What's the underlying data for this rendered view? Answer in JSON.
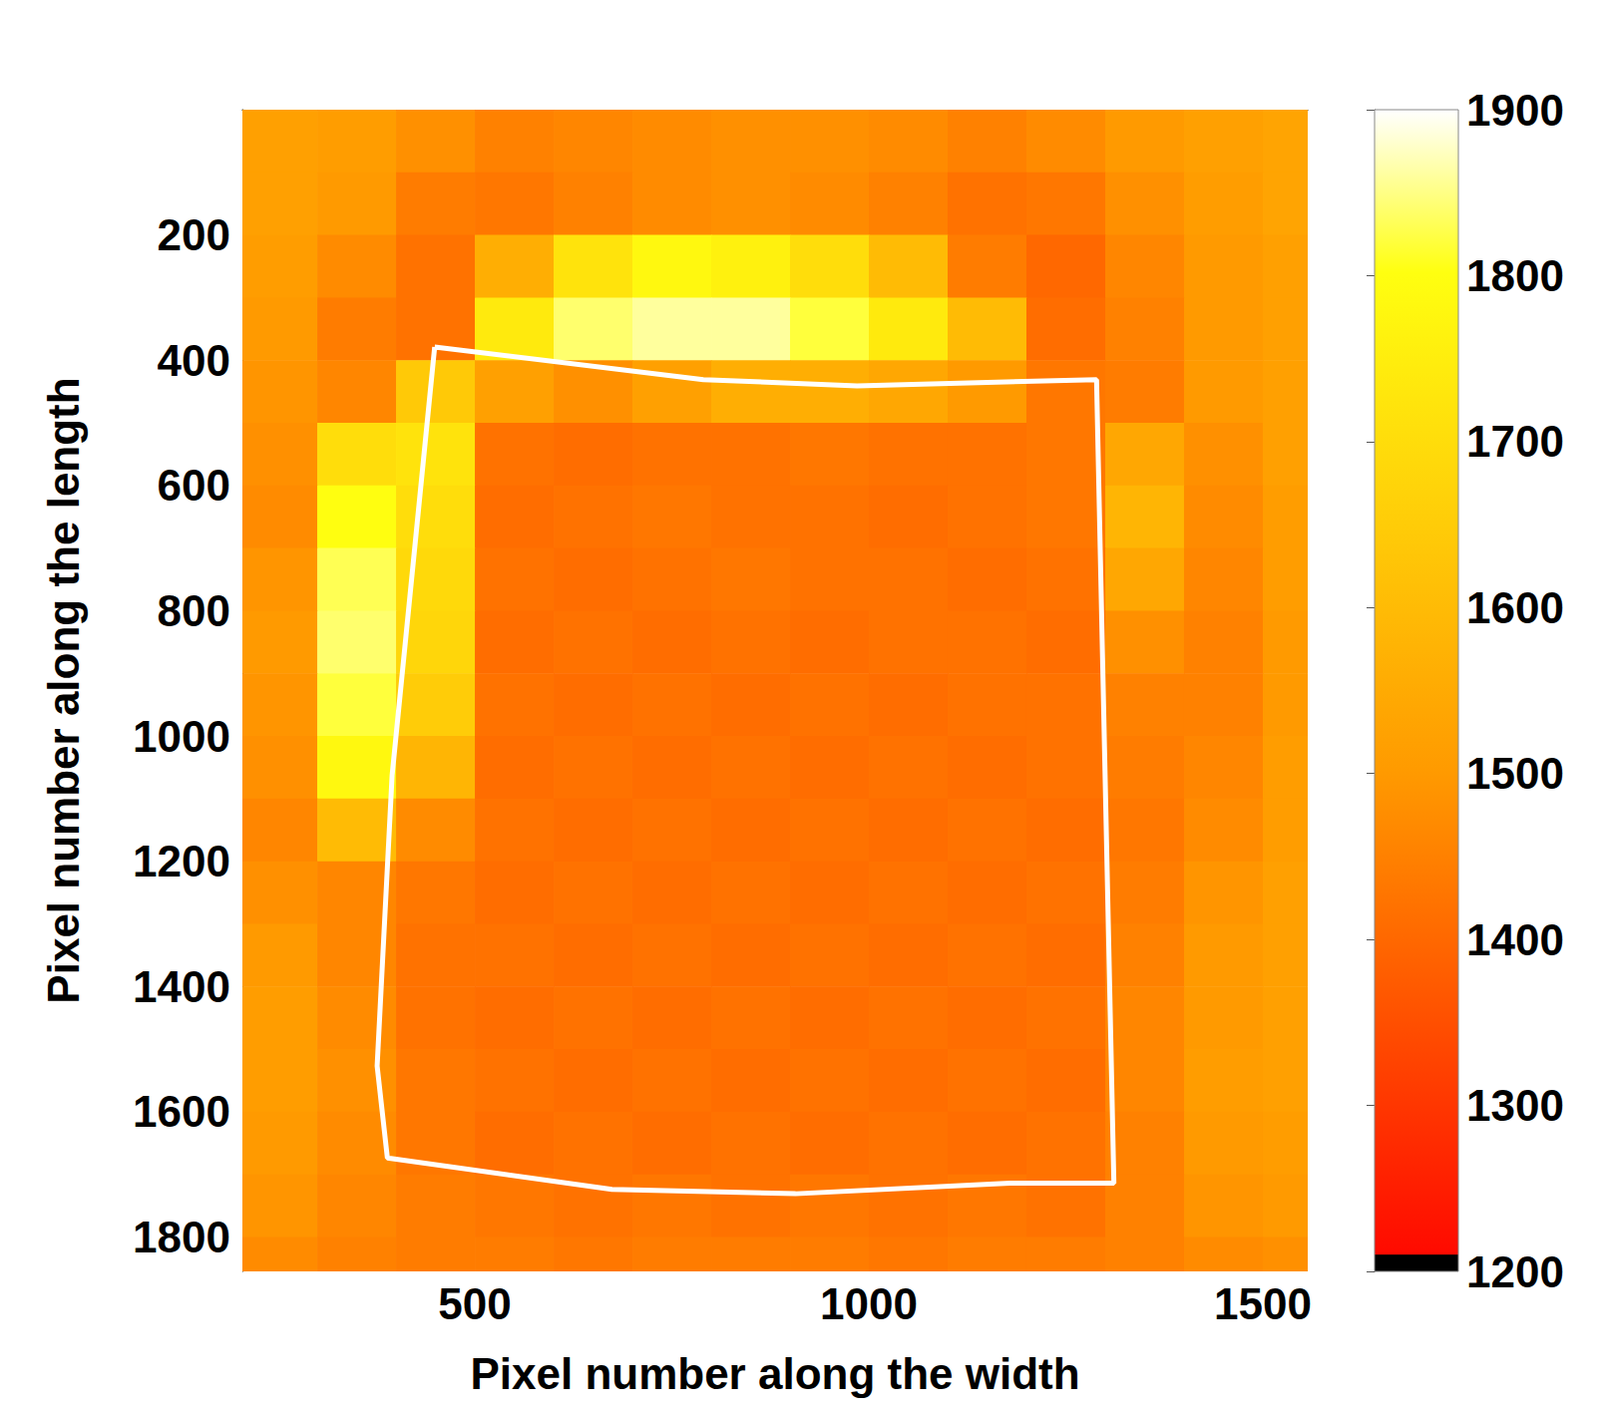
{
  "chart_data": {
    "type": "heatmap",
    "xlabel": "Pixel number along the width",
    "ylabel": "Pixel number along the length",
    "xlim": [
      205,
      1557
    ],
    "xticks": [
      500,
      1000,
      1500
    ],
    "ylim": [
      0,
      1855
    ],
    "yticks": [
      200,
      400,
      600,
      800,
      1000,
      1200,
      1400,
      1600,
      1800
    ],
    "x_edges": [
      205,
      300,
      400,
      500,
      600,
      700,
      800,
      900,
      1000,
      1100,
      1200,
      1300,
      1400,
      1500,
      1557
    ],
    "y_edges": [
      0,
      100,
      200,
      300,
      400,
      500,
      600,
      700,
      800,
      900,
      1000,
      1100,
      1200,
      1300,
      1400,
      1500,
      1600,
      1700,
      1800,
      1855
    ],
    "cells": [
      [
        1520,
        1510,
        1480,
        1450,
        1460,
        1470,
        1480,
        1480,
        1470,
        1450,
        1470,
        1500,
        1520,
        1530
      ],
      [
        1520,
        1500,
        1440,
        1430,
        1450,
        1470,
        1480,
        1470,
        1450,
        1420,
        1430,
        1480,
        1510,
        1530
      ],
      [
        1510,
        1470,
        1420,
        1560,
        1720,
        1780,
        1760,
        1700,
        1600,
        1440,
        1400,
        1460,
        1500,
        1520
      ],
      [
        1500,
        1440,
        1420,
        1740,
        1840,
        1860,
        1860,
        1820,
        1740,
        1600,
        1410,
        1450,
        1500,
        1520
      ],
      [
        1490,
        1460,
        1640,
        1520,
        1480,
        1520,
        1560,
        1560,
        1540,
        1500,
        1430,
        1440,
        1500,
        1520
      ],
      [
        1480,
        1700,
        1720,
        1420,
        1410,
        1420,
        1420,
        1430,
        1420,
        1420,
        1430,
        1540,
        1480,
        1520
      ],
      [
        1470,
        1800,
        1700,
        1410,
        1420,
        1430,
        1420,
        1420,
        1410,
        1420,
        1430,
        1580,
        1470,
        1510
      ],
      [
        1490,
        1830,
        1690,
        1420,
        1410,
        1420,
        1430,
        1420,
        1420,
        1410,
        1420,
        1540,
        1460,
        1510
      ],
      [
        1500,
        1840,
        1680,
        1410,
        1420,
        1410,
        1420,
        1410,
        1420,
        1420,
        1410,
        1480,
        1450,
        1500
      ],
      [
        1490,
        1820,
        1650,
        1420,
        1410,
        1420,
        1410,
        1420,
        1410,
        1420,
        1420,
        1450,
        1450,
        1500
      ],
      [
        1480,
        1780,
        1580,
        1410,
        1420,
        1410,
        1420,
        1410,
        1420,
        1410,
        1420,
        1440,
        1460,
        1510
      ],
      [
        1460,
        1600,
        1470,
        1420,
        1410,
        1420,
        1410,
        1420,
        1410,
        1420,
        1410,
        1430,
        1470,
        1510
      ],
      [
        1480,
        1460,
        1430,
        1410,
        1420,
        1410,
        1420,
        1410,
        1420,
        1410,
        1420,
        1440,
        1490,
        1520
      ],
      [
        1500,
        1460,
        1420,
        1420,
        1410,
        1420,
        1410,
        1420,
        1410,
        1420,
        1410,
        1450,
        1500,
        1520
      ],
      [
        1510,
        1470,
        1420,
        1410,
        1420,
        1410,
        1420,
        1410,
        1420,
        1410,
        1420,
        1460,
        1500,
        1520
      ],
      [
        1510,
        1480,
        1430,
        1420,
        1410,
        1420,
        1410,
        1420,
        1410,
        1420,
        1410,
        1460,
        1510,
        1520
      ],
      [
        1500,
        1470,
        1430,
        1410,
        1420,
        1410,
        1420,
        1410,
        1420,
        1410,
        1420,
        1450,
        1500,
        1510
      ],
      [
        1490,
        1460,
        1440,
        1430,
        1420,
        1430,
        1420,
        1430,
        1420,
        1430,
        1420,
        1450,
        1490,
        1500
      ],
      [
        1470,
        1450,
        1440,
        1440,
        1430,
        1440,
        1440,
        1440,
        1430,
        1440,
        1440,
        1450,
        1470,
        1480
      ]
    ],
    "colorbar": {
      "range": [
        1200,
        1900
      ],
      "ticks": [
        1200,
        1300,
        1400,
        1500,
        1600,
        1700,
        1800,
        1900
      ]
    },
    "outline": {
      "x": [
        449,
        790,
        985,
        1289,
        1311,
        1179,
        907,
        674,
        389,
        376,
        395
      ],
      "y": [
        379,
        431,
        441,
        431,
        1714,
        1714,
        1731,
        1724,
        1674,
        1527,
        1063
      ],
      "color": "#ffffff"
    }
  }
}
